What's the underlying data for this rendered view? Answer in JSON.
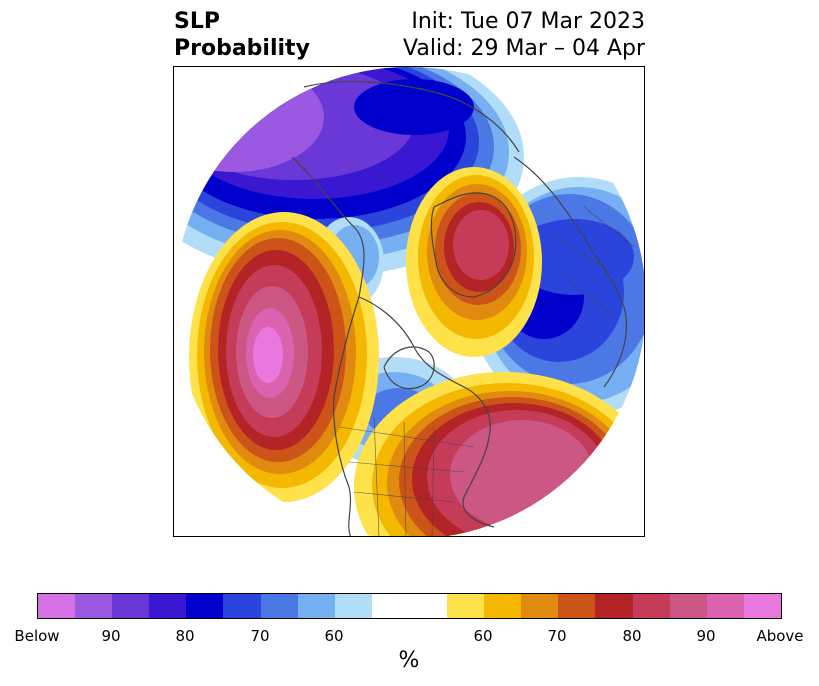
{
  "title": {
    "left_line1": "SLP",
    "left_line2": "Probability",
    "right_line1": "Init: Tue 07 Mar 2023",
    "right_line2": "Valid: 29 Mar – 04 Apr"
  },
  "colorbar": {
    "unit": "%",
    "colors": [
      "#d670e6",
      "#9b58e0",
      "#6b38d8",
      "#3a18d2",
      "#0000cc",
      "#2a44dc",
      "#4c78e6",
      "#76b0f2",
      "#b2ddf8",
      "#ffffff",
      "#ffe14a",
      "#f4b800",
      "#e08a10",
      "#cc5418",
      "#b42426",
      "#c43c58",
      "#cc5684",
      "#da62ae",
      "#e878de"
    ],
    "ticks": [
      {
        "label": "Below"
      },
      {
        "label": "90"
      },
      {
        "label": "80"
      },
      {
        "label": "70"
      },
      {
        "label": "60"
      },
      {
        "label": "60"
      },
      {
        "label": "70"
      },
      {
        "label": "80"
      },
      {
        "label": "90"
      },
      {
        "label": "Above"
      }
    ]
  },
  "map": {
    "projection": "north-polar-stereographic",
    "variable": "sea-level pressure tercile probability",
    "features": [
      "below-normal-north-pacific-siberia",
      "above-normal-gulf-of-alaska",
      "above-normal-greenland-arctic",
      "above-normal-western-atlantic",
      "below-normal-northern-europe",
      "below-normal-central-canada"
    ]
  }
}
